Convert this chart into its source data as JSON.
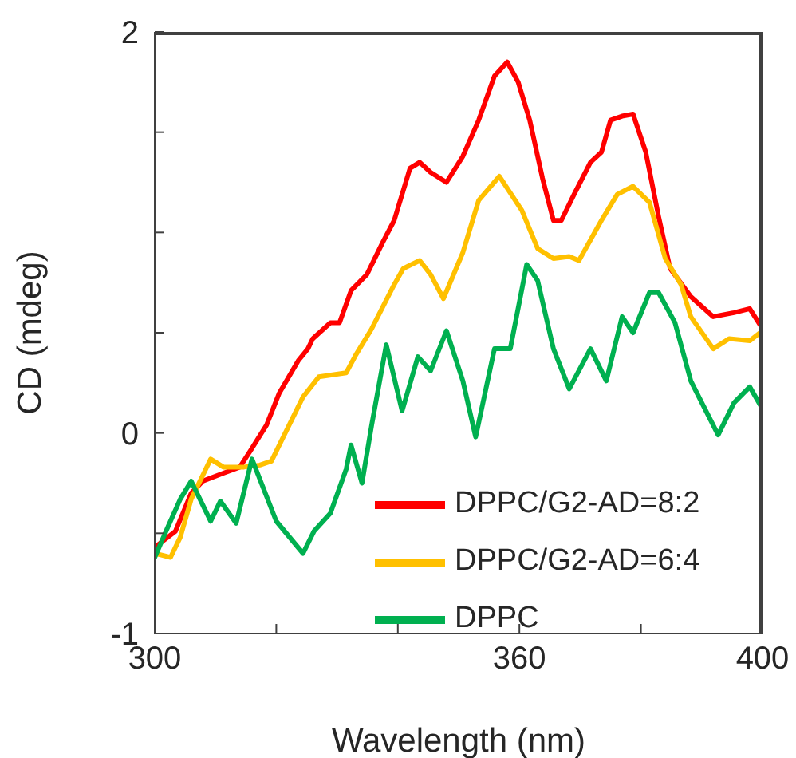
{
  "chart_data": {
    "type": "line",
    "xlabel": "Wavelength (nm)",
    "ylabel": "CD (mdeg)",
    "xlim": [
      300,
      400
    ],
    "ylim": [
      -1,
      2
    ],
    "xticks": [
      300,
      {
        "value": 320,
        "label": null
      },
      {
        "value": 340,
        "label": null
      },
      360,
      {
        "value": 380,
        "label": null
      },
      400
    ],
    "yticks": [
      -1,
      {
        "value": -0.5,
        "label": null
      },
      0,
      {
        "value": 0.5,
        "label": null
      },
      {
        "value": 1,
        "label": null
      },
      {
        "value": 1.5,
        "label": null
      },
      2
    ],
    "grid": false,
    "legend": "bottom right",
    "marker": "none",
    "line_style": "solid",
    "series": [
      {
        "name": "DPPC/G2-AD=8:2",
        "color": "#ff0000",
        "x": [
          300,
          303.4,
          306,
          307.9,
          311.3,
          314,
          315.7,
          318.4,
          320.5,
          323.6,
          325.2,
          326,
          328.9,
          330.4,
          332.3,
          334.9,
          337.5,
          339.4,
          342,
          343.6,
          345.4,
          348,
          350.7,
          353.3,
          355.9,
          358,
          359.8,
          361.7,
          363.8,
          365.6,
          366.9,
          369,
          371.7,
          373.5,
          375,
          376.9,
          378.7,
          380.8,
          382.9,
          384.8,
          388.2,
          391.9,
          395.3,
          397.9,
          400
        ],
        "values": [
          -0.57,
          -0.49,
          -0.3,
          -0.24,
          -0.2,
          -0.17,
          -0.09,
          0.04,
          0.2,
          0.36,
          0.42,
          0.47,
          0.55,
          0.55,
          0.71,
          0.79,
          0.95,
          1.06,
          1.32,
          1.35,
          1.3,
          1.25,
          1.38,
          1.56,
          1.78,
          1.85,
          1.75,
          1.56,
          1.27,
          1.06,
          1.06,
          1.19,
          1.35,
          1.4,
          1.56,
          1.58,
          1.59,
          1.4,
          1.08,
          0.82,
          0.68,
          0.58,
          0.6,
          0.62,
          0.52
        ]
      },
      {
        "name": "DPPC/G2-AD=6:4",
        "color": "#ffc000",
        "x": [
          300,
          302.6,
          304.2,
          306,
          309.2,
          311.3,
          314.7,
          317.3,
          319.2,
          321.8,
          324.4,
          327,
          331.5,
          333.1,
          335.7,
          339.4,
          340.9,
          343.6,
          345.4,
          347.5,
          350.7,
          353.3,
          356.7,
          360.4,
          363,
          365.6,
          368.2,
          369.8,
          373.5,
          376.1,
          378.7,
          381.4,
          384,
          386.6,
          388.2,
          391.9,
          394.5,
          397.9,
          400
        ],
        "values": [
          -0.6,
          -0.62,
          -0.52,
          -0.33,
          -0.13,
          -0.17,
          -0.17,
          -0.16,
          -0.14,
          0.02,
          0.18,
          0.28,
          0.3,
          0.39,
          0.52,
          0.74,
          0.82,
          0.86,
          0.79,
          0.67,
          0.9,
          1.16,
          1.28,
          1.11,
          0.92,
          0.87,
          0.88,
          0.86,
          1.06,
          1.19,
          1.23,
          1.15,
          0.87,
          0.74,
          0.58,
          0.42,
          0.47,
          0.46,
          0.51
        ]
      },
      {
        "name": "DPPC",
        "color": "#00b050",
        "x": [
          300,
          302,
          304.2,
          306,
          309.2,
          310.8,
          313.4,
          316,
          320,
          324.4,
          326.2,
          328.9,
          331.5,
          332.3,
          334.1,
          335.7,
          338.1,
          340.7,
          343.3,
          345.4,
          348,
          350.7,
          352.8,
          355.9,
          358.5,
          361.2,
          363,
          365.6,
          368.2,
          371.7,
          374.3,
          376.9,
          378.7,
          381.4,
          382.9,
          385.6,
          388.2,
          392.7,
          395.3,
          397.9,
          400
        ],
        "values": [
          -0.62,
          -0.48,
          -0.33,
          -0.24,
          -0.44,
          -0.34,
          -0.45,
          -0.13,
          -0.44,
          -0.6,
          -0.49,
          -0.4,
          -0.18,
          -0.06,
          -0.25,
          0.04,
          0.44,
          0.11,
          0.38,
          0.31,
          0.51,
          0.26,
          -0.02,
          0.42,
          0.42,
          0.84,
          0.76,
          0.42,
          0.22,
          0.42,
          0.26,
          0.58,
          0.5,
          0.7,
          0.7,
          0.55,
          0.26,
          -0.01,
          0.15,
          0.23,
          0.12
        ]
      }
    ]
  }
}
